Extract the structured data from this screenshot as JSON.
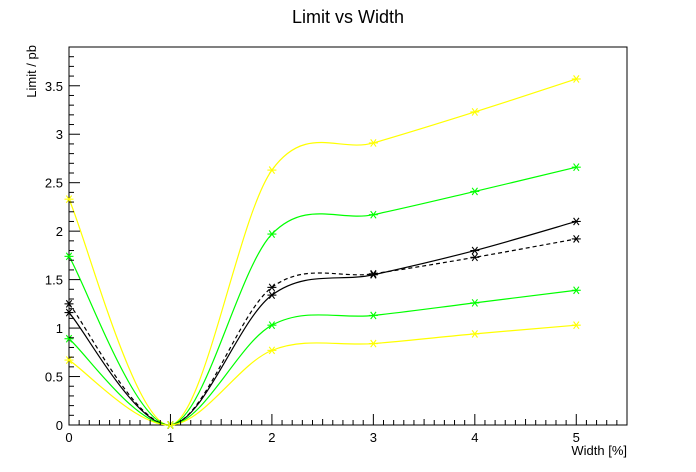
{
  "chart_data": {
    "type": "line",
    "title": "Limit vs Width",
    "xlabel": "Width [%]",
    "ylabel": "Limit / pb",
    "xlim": [
      0,
      5.5
    ],
    "ylim": [
      0,
      3.9
    ],
    "x_ticks": [
      0,
      1,
      2,
      3,
      4,
      5
    ],
    "x_tick_labels": [
      "0",
      "1",
      "2",
      "3",
      "4",
      "5"
    ],
    "y_ticks": [
      0,
      0.5,
      1,
      1.5,
      2,
      2.5,
      3,
      3.5
    ],
    "y_tick_labels": [
      "0",
      "0.5",
      "1",
      "1.5",
      "2",
      "2.5",
      "3",
      "3.5"
    ],
    "grid": false,
    "legend": "none",
    "x": [
      0,
      1,
      2,
      3,
      4,
      5
    ],
    "series": [
      {
        "values": [
          2.33,
          0.0,
          2.63,
          2.91,
          3.23,
          3.57
        ],
        "color": "#ffff00",
        "style": "solid",
        "marker": "asterisk"
      },
      {
        "values": [
          1.74,
          0.0,
          1.97,
          2.17,
          2.41,
          2.66
        ],
        "color": "#00ff00",
        "style": "solid",
        "marker": "asterisk"
      },
      {
        "values": [
          1.16,
          0.0,
          1.34,
          1.55,
          1.8,
          2.1
        ],
        "color": "#000000",
        "style": "solid",
        "marker": "asterisk"
      },
      {
        "values": [
          1.25,
          0.0,
          1.42,
          1.56,
          1.73,
          1.92
        ],
        "color": "#000000",
        "style": "dashed",
        "marker": "asterisk"
      },
      {
        "values": [
          0.89,
          0.0,
          1.03,
          1.13,
          1.26,
          1.39
        ],
        "color": "#00ff00",
        "style": "solid",
        "marker": "asterisk"
      },
      {
        "values": [
          0.67,
          0.0,
          0.77,
          0.84,
          0.94,
          1.03
        ],
        "color": "#ffff00",
        "style": "solid",
        "marker": "asterisk"
      }
    ]
  }
}
